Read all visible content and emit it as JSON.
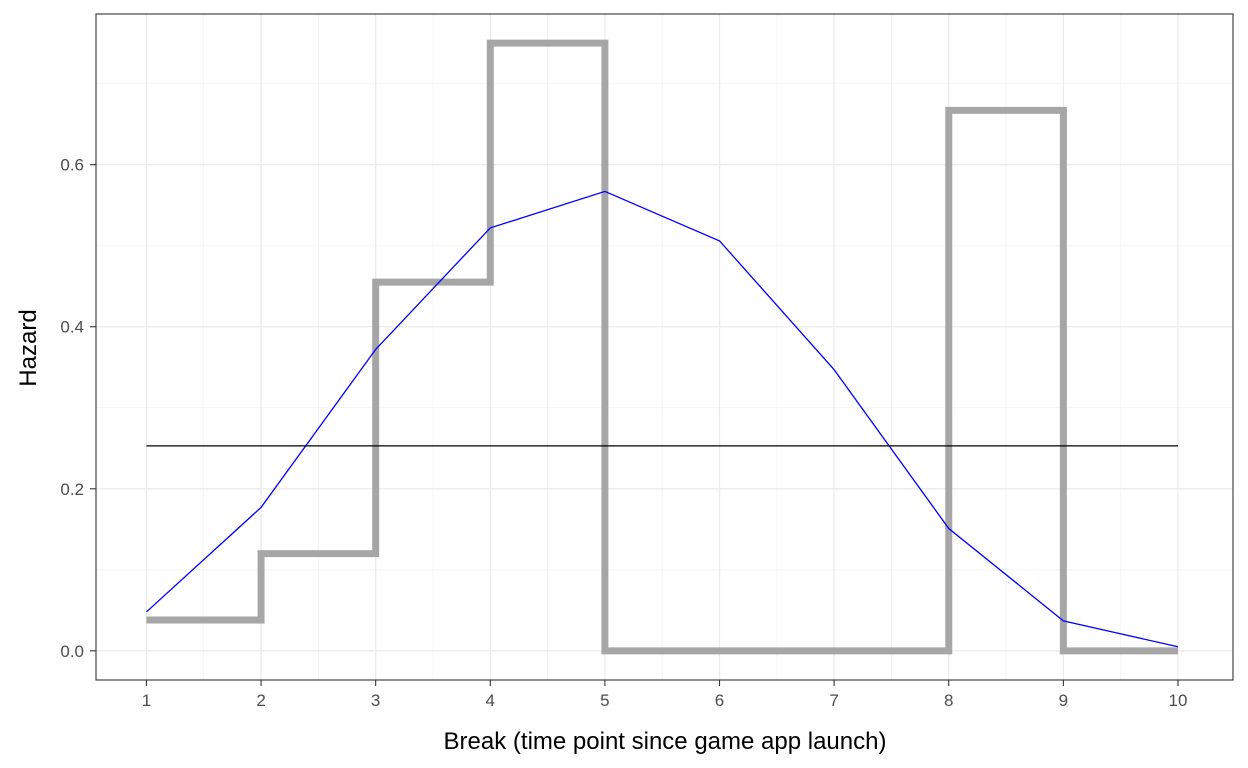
{
  "chart_data": {
    "type": "line",
    "title": "",
    "xlabel": "Break (time point since game app launch)",
    "ylabel": "Hazard",
    "xlim": [
      0.56,
      10.48
    ],
    "ylim": [
      -0.036,
      0.786
    ],
    "x_ticks": [
      1,
      2,
      3,
      4,
      5,
      6,
      7,
      8,
      9,
      10
    ],
    "y_ticks": [
      0.0,
      0.2,
      0.4,
      0.6
    ],
    "y_tick_labels": [
      "0.0",
      "0.2",
      "0.4",
      "0.6"
    ],
    "grid": true,
    "legend": "none",
    "series": [
      {
        "style": "step",
        "color": "#a6a6a6",
        "x": [
          1,
          2,
          3,
          4,
          5,
          6,
          7,
          8,
          9,
          10
        ],
        "values": [
          0.038,
          0.12,
          0.455,
          0.75,
          0.0,
          0.0,
          0.0,
          0.667,
          0.0,
          0.0
        ]
      },
      {
        "style": "line",
        "color": "#0000ff",
        "x": [
          1,
          2,
          3,
          4,
          5,
          6,
          7,
          8,
          9,
          10
        ],
        "values": [
          0.048,
          0.177,
          0.372,
          0.522,
          0.567,
          0.506,
          0.347,
          0.151,
          0.037,
          0.005
        ]
      },
      {
        "style": "line",
        "color": "#000000",
        "x": [
          1,
          10
        ],
        "values": [
          0.253,
          0.253
        ]
      }
    ]
  }
}
